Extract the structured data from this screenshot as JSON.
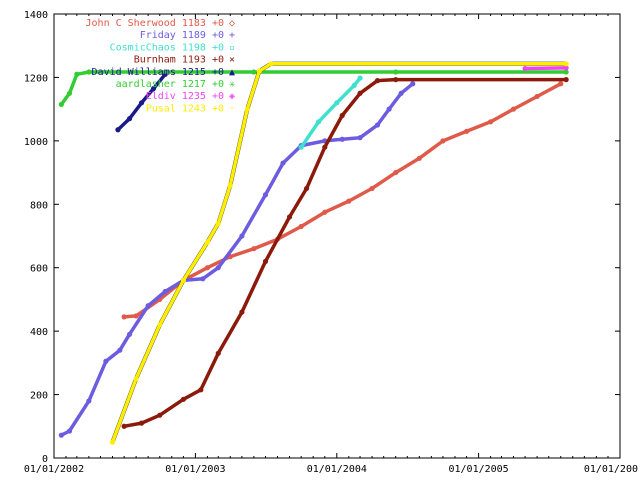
{
  "chart_data": {
    "type": "line",
    "title": "",
    "xlabel": "",
    "ylabel": "",
    "x_axis": {
      "type": "date",
      "min": "2002-01-01",
      "max": "2006-01-01",
      "tick_labels": [
        "01/01/2002",
        "01/01/2003",
        "01/01/2004",
        "01/01/2005",
        "01/01/200"
      ]
    },
    "y_axis": {
      "min": 0,
      "max": 1400,
      "tick_labels": [
        "0",
        "200",
        "400",
        "600",
        "800",
        "1000",
        "1200",
        "1400"
      ]
    },
    "grid": false,
    "legend_position": "top-left",
    "series": [
      {
        "name": "John C  Sherwood 1183 +0",
        "marker": "◇",
        "color": "#e05a4a",
        "x": [
          "2002-07-01",
          "2002-08-01",
          "2002-10-01",
          "2002-12-01",
          "2003-02-01",
          "2003-04-01",
          "2003-06-01",
          "2003-08-01",
          "2003-10-01",
          "2003-12-01",
          "2004-02-01",
          "2004-04-01",
          "2004-06-01",
          "2004-08-01",
          "2004-10-01",
          "2004-12-01",
          "2005-02-01",
          "2005-04-01",
          "2005-06-01",
          "2005-08-01"
        ],
        "y": [
          445,
          448,
          500,
          560,
          600,
          635,
          660,
          690,
          730,
          775,
          810,
          850,
          900,
          945,
          1000,
          1030,
          1060,
          1100,
          1140,
          1180
        ]
      },
      {
        "name": "Friday 1189 +0",
        "marker": "+",
        "color": "#6b5ce0",
        "x": [
          "2002-01-20",
          "2002-02-10",
          "2002-04-01",
          "2002-05-15",
          "2002-06-20",
          "2002-07-15",
          "2002-09-01",
          "2002-10-15",
          "2002-12-01",
          "2003-01-20",
          "2003-03-01",
          "2003-05-01",
          "2003-07-01",
          "2003-08-15",
          "2003-10-01",
          "2003-12-01",
          "2004-01-15",
          "2004-03-01",
          "2004-04-15",
          "2004-05-15",
          "2004-06-15",
          "2004-07-15"
        ],
        "y": [
          72,
          85,
          180,
          305,
          340,
          390,
          480,
          525,
          560,
          565,
          600,
          700,
          830,
          930,
          985,
          1000,
          1005,
          1010,
          1050,
          1100,
          1150,
          1180
        ]
      },
      {
        "name": "CosmicChaos 1198 +0",
        "marker": "▫",
        "color": "#40e0d0",
        "x": [
          "2003-10-01",
          "2003-11-15",
          "2004-01-01",
          "2004-02-15",
          "2004-03-01"
        ],
        "y": [
          980,
          1060,
          1120,
          1175,
          1198
        ]
      },
      {
        "name": "Burnham 1193 +0",
        "marker": "×",
        "color": "#8b1a0a",
        "x": [
          "2002-07-01",
          "2002-08-15",
          "2002-10-01",
          "2002-12-01",
          "2003-01-15",
          "2003-03-01",
          "2003-05-01",
          "2003-07-01",
          "2003-09-01",
          "2003-10-15",
          "2003-12-01",
          "2004-01-15",
          "2004-03-01",
          "2004-04-15",
          "2004-06-01",
          "2005-08-15"
        ],
        "y": [
          100,
          110,
          135,
          185,
          215,
          330,
          460,
          620,
          760,
          850,
          980,
          1080,
          1150,
          1190,
          1193,
          1193
        ]
      },
      {
        "name": "David Williams 1215 +0",
        "marker": "▲",
        "color": "#1a1a8a",
        "x": [
          "2002-06-15",
          "2002-07-15",
          "2002-08-15",
          "2002-09-15",
          "2002-10-15"
        ],
        "y": [
          1035,
          1070,
          1120,
          1165,
          1210
        ]
      },
      {
        "name": "aardlasher 1217 +0",
        "marker": "✳",
        "color": "#33cc33",
        "x": [
          "2002-01-20",
          "2002-02-10",
          "2002-03-01",
          "2002-04-01",
          "2003-06-01",
          "2004-06-01",
          "2005-08-15"
        ],
        "y": [
          1115,
          1150,
          1210,
          1217,
          1217,
          1217,
          1217
        ]
      },
      {
        "name": "Eldiv 1235 +0",
        "marker": "◈",
        "color": "#ee44ee",
        "x": [
          "2005-05-01",
          "2005-08-15"
        ],
        "y": [
          1228,
          1230
        ]
      },
      {
        "name": "Pusal 1243 +0",
        "marker": "·",
        "color": "#ffee00",
        "x": [
          "2002-06-01",
          "2002-08-01",
          "2002-10-01",
          "2002-12-01",
          "2003-02-01",
          "2003-03-01",
          "2003-04-01",
          "2003-05-15",
          "2003-06-15",
          "2003-07-15",
          "2005-08-15"
        ],
        "y": [
          50,
          250,
          420,
          560,
          680,
          740,
          860,
          1100,
          1220,
          1243,
          1243
        ]
      }
    ]
  }
}
